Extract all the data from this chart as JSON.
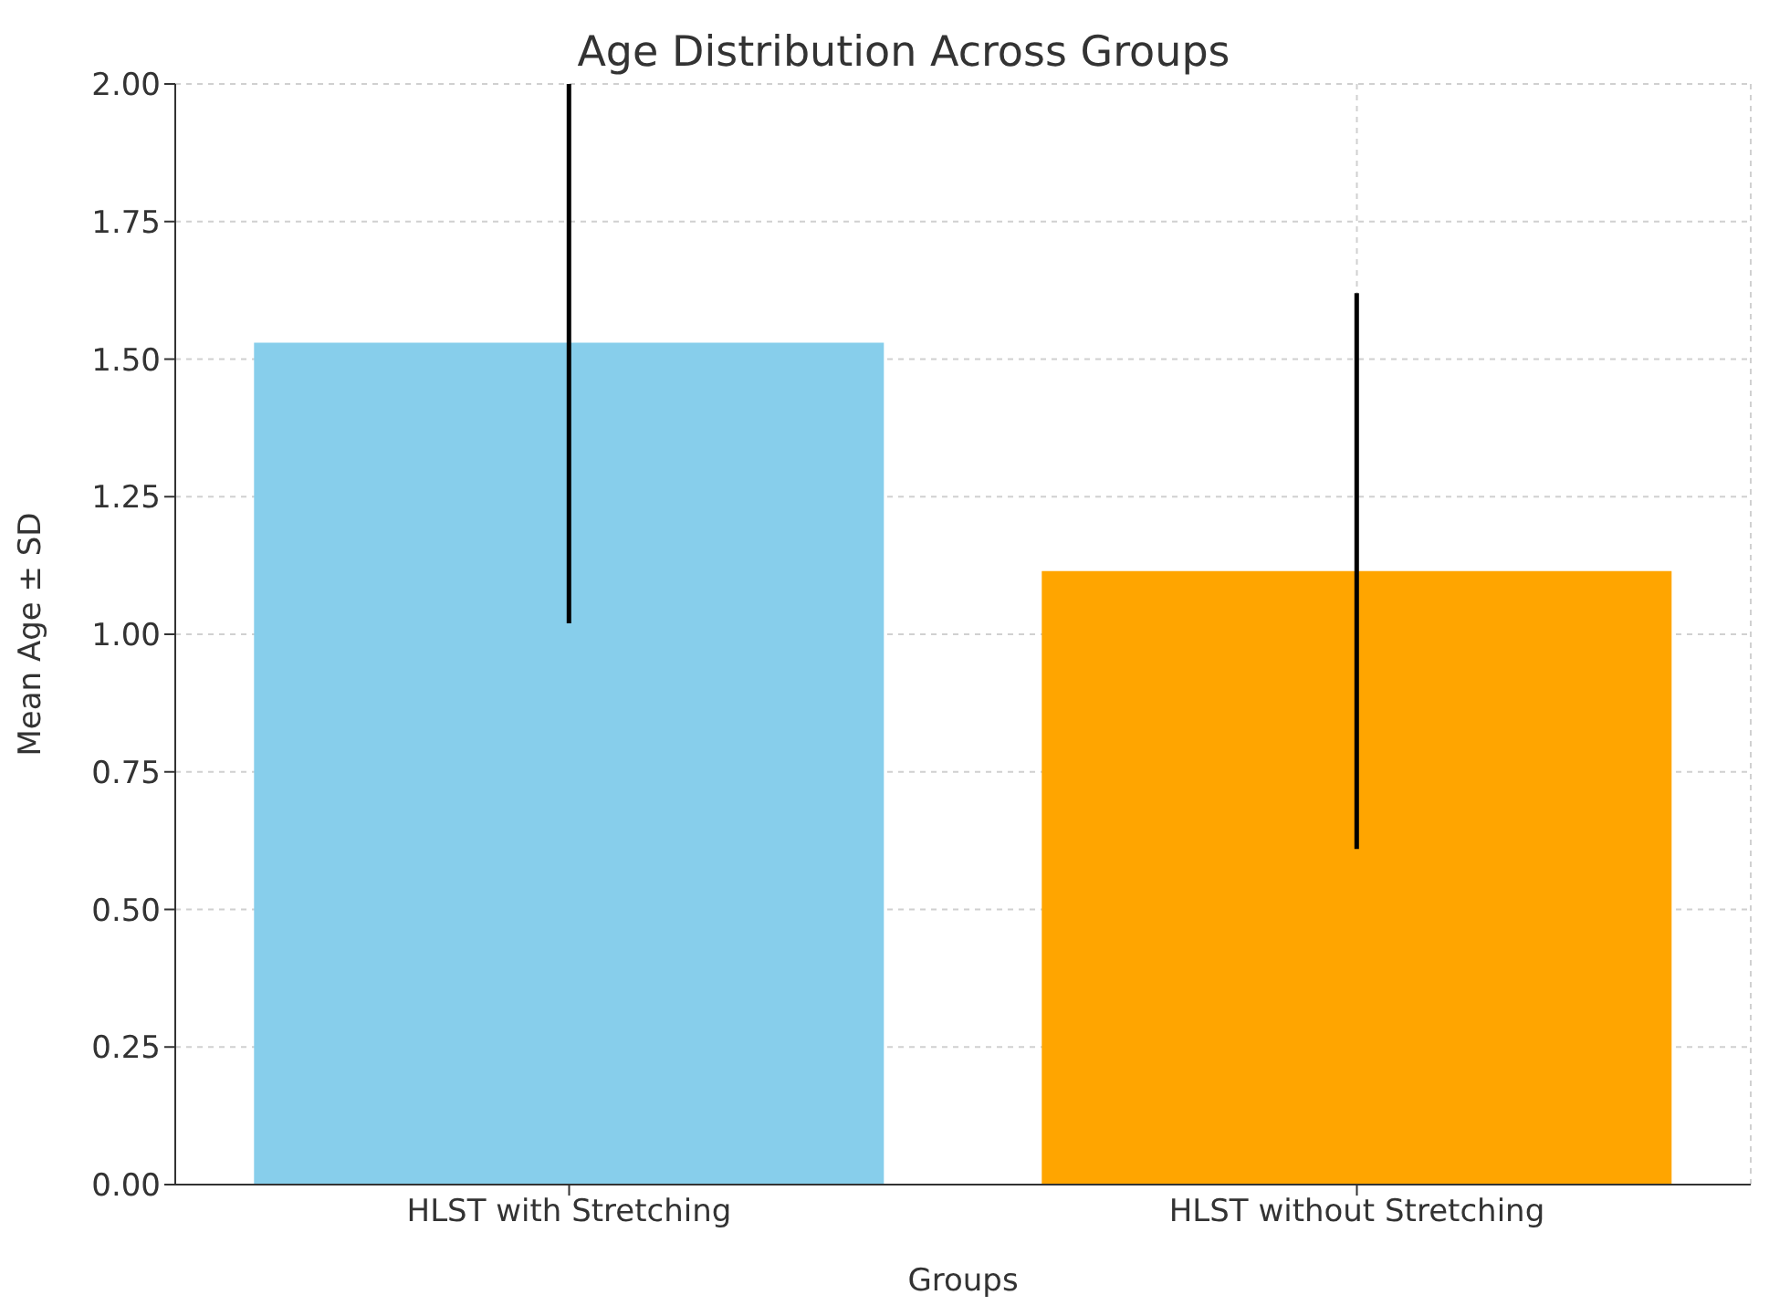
{
  "chart_data": {
    "type": "bar",
    "title": "Age Distribution Across Groups",
    "xlabel": "Groups",
    "ylabel": "Mean Age ± SD",
    "categories": [
      "HLST with Stretching",
      "HLST without Stretching"
    ],
    "values": [
      1.53,
      1.115
    ],
    "colors": [
      "#87ceeb",
      "#ffa500"
    ],
    "errors": [
      [
        1.02,
        2.0
      ],
      [
        0.61,
        1.62
      ]
    ],
    "ylim": [
      0,
      2
    ],
    "yticks": [
      {
        "value": 0,
        "label": "0.00"
      },
      {
        "value": 0.25,
        "label": "0.25"
      },
      {
        "value": 0.5,
        "label": "0.50"
      },
      {
        "value": 0.75,
        "label": "0.75"
      },
      {
        "value": 1,
        "label": "1.00"
      },
      {
        "value": 1.25,
        "label": "1.25"
      },
      {
        "value": 1.5,
        "label": "1.50"
      },
      {
        "value": 1.75,
        "label": "1.75"
      },
      {
        "value": 2,
        "label": "2.00"
      }
    ],
    "grid": true
  }
}
